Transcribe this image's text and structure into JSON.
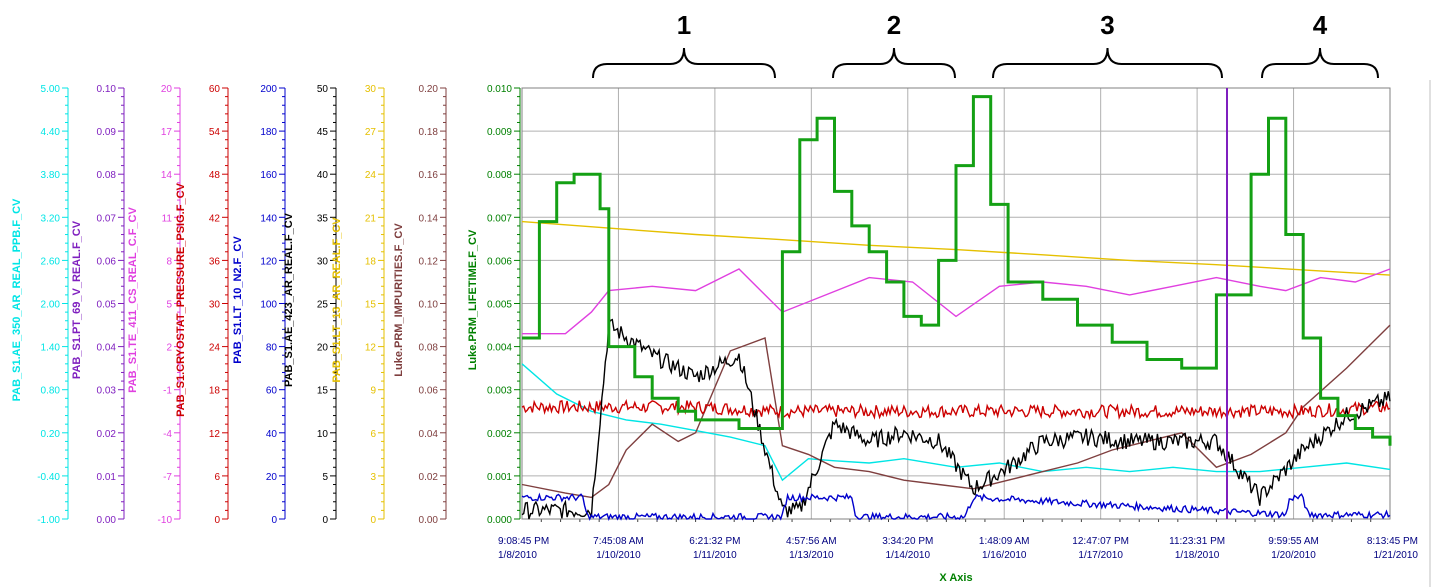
{
  "chart_data": {
    "type": "line",
    "x_axis_title": "X Axis",
    "x_tick_labels": [
      {
        "time": "9:08:45 PM",
        "date": "1/8/2010"
      },
      {
        "time": "7:45:08 AM",
        "date": "1/10/2010"
      },
      {
        "time": "6:21:32 PM",
        "date": "1/11/2010"
      },
      {
        "time": "4:57:56 AM",
        "date": "1/13/2010"
      },
      {
        "time": "3:34:20 PM",
        "date": "1/14/2010"
      },
      {
        "time": "1:48:09 AM",
        "date": "1/16/2010"
      },
      {
        "time": "12:47:07 PM",
        "date": "1/17/2010"
      },
      {
        "time": "11:23:31 PM",
        "date": "1/18/2010"
      },
      {
        "time": "9:59:55 AM",
        "date": "1/20/2010"
      },
      {
        "time": "8:13:45 PM",
        "date": "1/21/2010"
      }
    ],
    "region_labels": [
      "1",
      "2",
      "3",
      "4"
    ],
    "grid": true,
    "axes": [
      {
        "name": "PAB_S1.AE_350_AR_REAL_PPB.F_CV",
        "color": "#00e5e5",
        "ticks": [
          "5.00",
          "4.40",
          "3.80",
          "3.20",
          "2.60",
          "2.00",
          "1.40",
          "0.80",
          "0.20",
          "-0.40",
          "-1.00"
        ],
        "range": [
          -1.0,
          5.0
        ]
      },
      {
        "name": "PAB_S1.PT_69_V_REAL.F_CV",
        "color": "#7f1fbf",
        "ticks": [
          "0.10",
          "0.09",
          "0.08",
          "0.07",
          "0.06",
          "0.05",
          "0.04",
          "0.03",
          "0.02",
          "0.01",
          "0.00"
        ],
        "range": [
          0.0,
          0.1
        ]
      },
      {
        "name": "PAB_S1.TE_411_CS_REAL_C.F_CV",
        "color": "#e040e0",
        "ticks": [
          "20",
          "17",
          "14",
          "11",
          "8",
          "5",
          "2",
          "-1",
          "-4",
          "-7",
          "-10"
        ],
        "range": [
          -10,
          20
        ]
      },
      {
        "name": "PAB_S1.CRYOSTAT_PRESSURE_PSIG.F_CV",
        "color": "#cc0000",
        "ticks": [
          "60",
          "54",
          "48",
          "42",
          "36",
          "30",
          "24",
          "18",
          "12",
          "6",
          "0"
        ],
        "range": [
          0,
          60
        ]
      },
      {
        "name": "PAB_S1.LT_10_N2.F_CV",
        "color": "#0000cc",
        "ticks": [
          "200",
          "180",
          "160",
          "140",
          "120",
          "100",
          "80",
          "60",
          "40",
          "20",
          "0"
        ],
        "range": [
          0,
          200
        ]
      },
      {
        "name": "PAB_S1.AE_423_AR_REAL.F_CV",
        "color": "#000000",
        "ticks": [
          "50",
          "45",
          "40",
          "35",
          "30",
          "25",
          "20",
          "15",
          "10",
          "5",
          "0"
        ],
        "range": [
          0,
          50
        ]
      },
      {
        "name": "PAB_S1.LT_13_AR_REAL.F_CV",
        "color": "#e5c000",
        "ticks": [
          "30",
          "27",
          "24",
          "21",
          "18",
          "15",
          "12",
          "9",
          "6",
          "3",
          "0"
        ],
        "range": [
          0,
          30
        ]
      },
      {
        "name": "Luke.PRM_IMPURITIES.F_CV",
        "color": "#7f3f3f",
        "ticks": [
          "0.20",
          "0.18",
          "0.16",
          "0.14",
          "0.12",
          "0.10",
          "0.08",
          "0.06",
          "0.04",
          "0.02",
          "0.00"
        ],
        "range": [
          0.0,
          0.2
        ]
      },
      {
        "name": "Luke.PRM_LIFETIME.F_CV",
        "color": "#008000",
        "ticks": [
          "0.010",
          "0.009",
          "0.008",
          "0.007",
          "0.006",
          "0.005",
          "0.004",
          "0.003",
          "0.002",
          "0.001",
          "0.000"
        ],
        "range": [
          0.0,
          0.01
        ]
      }
    ],
    "series": [
      {
        "color": "#e5c000",
        "axis": 8,
        "x": [
          0,
          0.1,
          0.2,
          0.3,
          0.4,
          0.5,
          0.6,
          0.7,
          0.8,
          0.9,
          1.0
        ],
        "y": [
          0.0069,
          0.00675,
          0.0066,
          0.00648,
          0.00635,
          0.00625,
          0.00613,
          0.006,
          0.0059,
          0.00578,
          0.00566
        ]
      },
      {
        "color": "#00e5e5",
        "axis": 8,
        "x": [
          0,
          0.04,
          0.08,
          0.12,
          0.16,
          0.2,
          0.24,
          0.28,
          0.3,
          0.33,
          0.36,
          0.4,
          0.44,
          0.5,
          0.55,
          0.6,
          0.65,
          0.7,
          0.75,
          0.8,
          0.85,
          0.9,
          0.95,
          1.0
        ],
        "y": [
          0.0036,
          0.0029,
          0.0025,
          0.0023,
          0.0022,
          0.00205,
          0.0019,
          0.0017,
          0.0009,
          0.0014,
          0.00135,
          0.0013,
          0.0014,
          0.0012,
          0.0013,
          0.0011,
          0.0012,
          0.0011,
          0.0012,
          0.0011,
          0.0011,
          0.0012,
          0.0013,
          0.00115
        ]
      },
      {
        "color": "#e040e0",
        "axis": 8,
        "x": [
          0,
          0.05,
          0.08,
          0.1,
          0.15,
          0.2,
          0.25,
          0.3,
          0.35,
          0.4,
          0.45,
          0.5,
          0.55,
          0.6,
          0.65,
          0.7,
          0.75,
          0.8,
          0.85,
          0.88,
          0.92,
          0.96,
          1.0
        ],
        "y": [
          0.0043,
          0.0043,
          0.0048,
          0.0053,
          0.0054,
          0.0053,
          0.0058,
          0.0048,
          0.0052,
          0.0056,
          0.0055,
          0.0047,
          0.0054,
          0.0055,
          0.0054,
          0.0052,
          0.0054,
          0.0056,
          0.0054,
          0.0053,
          0.0056,
          0.0055,
          0.0058
        ]
      },
      {
        "color": "#7f3f3f",
        "axis": 8,
        "x": [
          0,
          0.05,
          0.08,
          0.1,
          0.12,
          0.15,
          0.18,
          0.2,
          0.24,
          0.28,
          0.3,
          0.33,
          0.36,
          0.4,
          0.44,
          0.48,
          0.52,
          0.56,
          0.6,
          0.64,
          0.68,
          0.72,
          0.76,
          0.8,
          0.84,
          0.88,
          0.9,
          0.95,
          1.0
        ],
        "y": [
          0.0008,
          0.0006,
          0.0005,
          0.0008,
          0.0016,
          0.0022,
          0.0018,
          0.002,
          0.0039,
          0.0042,
          0.0017,
          0.0015,
          0.0012,
          0.0011,
          0.0009,
          0.0008,
          0.0007,
          0.0009,
          0.0011,
          0.0013,
          0.0016,
          0.0018,
          0.002,
          0.0012,
          0.0015,
          0.002,
          0.0026,
          0.0035,
          0.0045
        ]
      },
      {
        "color": "#cc0000",
        "axis": 8,
        "noise": 0.00015,
        "x": [
          0,
          0.1,
          0.2,
          0.3,
          0.4,
          0.5,
          0.6,
          0.7,
          0.8,
          0.9,
          1.0
        ],
        "y": [
          0.0026,
          0.0026,
          0.0026,
          0.0025,
          0.0025,
          0.0025,
          0.0025,
          0.0025,
          0.0025,
          0.0025,
          0.0026
        ]
      },
      {
        "color": "#000000",
        "axis": 8,
        "noise": 0.0002,
        "x": [
          0,
          0.05,
          0.08,
          0.1,
          0.15,
          0.2,
          0.25,
          0.3,
          0.32,
          0.36,
          0.4,
          0.44,
          0.48,
          0.52,
          0.56,
          0.6,
          0.65,
          0.7,
          0.75,
          0.8,
          0.85,
          0.9,
          0.95,
          1.0
        ],
        "y": [
          0.0002,
          0.0002,
          0.0002,
          0.0045,
          0.0038,
          0.0033,
          0.0038,
          0.0002,
          0.0002,
          0.0022,
          0.0018,
          0.002,
          0.0018,
          0.0007,
          0.0012,
          0.0018,
          0.0019,
          0.0018,
          0.0018,
          0.0018,
          0.0005,
          0.0016,
          0.0024,
          0.0028
        ]
      },
      {
        "color": "#0000cc",
        "axis": 8,
        "noise": 8e-05,
        "x": [
          0,
          0.07,
          0.075,
          0.3,
          0.305,
          0.38,
          0.385,
          0.51,
          0.52,
          0.88,
          0.885,
          0.9,
          0.905,
          1.0
        ],
        "y": [
          0.0005,
          0.0005,
          5e-05,
          5e-05,
          0.0005,
          0.0005,
          5e-05,
          5e-05,
          0.0005,
          0.0001,
          0.0005,
          0.0005,
          0.0001,
          0.0001
        ]
      },
      {
        "color": "#14a014",
        "axis": 8,
        "step": true,
        "thick": true,
        "x": [
          0,
          0.02,
          0.04,
          0.06,
          0.09,
          0.1,
          0.13,
          0.15,
          0.18,
          0.2,
          0.25,
          0.3,
          0.32,
          0.34,
          0.36,
          0.38,
          0.4,
          0.42,
          0.44,
          0.46,
          0.48,
          0.5,
          0.52,
          0.54,
          0.56,
          0.6,
          0.64,
          0.68,
          0.72,
          0.76,
          0.8,
          0.84,
          0.86,
          0.88,
          0.9,
          0.92,
          0.94,
          0.96,
          0.98,
          1.0
        ],
        "y": [
          0.0042,
          0.0069,
          0.0078,
          0.008,
          0.0072,
          0.004,
          0.0033,
          0.0028,
          0.0025,
          0.0023,
          0.0021,
          0.0062,
          0.0088,
          0.0093,
          0.0076,
          0.0068,
          0.0062,
          0.0055,
          0.0047,
          0.0045,
          0.006,
          0.0082,
          0.0098,
          0.0073,
          0.0055,
          0.0051,
          0.0045,
          0.0041,
          0.0037,
          0.0035,
          0.0052,
          0.008,
          0.0093,
          0.0066,
          0.0042,
          0.0028,
          0.0024,
          0.0021,
          0.0019,
          0.0017
        ]
      }
    ],
    "cursor_color": "#7f1fbf"
  }
}
